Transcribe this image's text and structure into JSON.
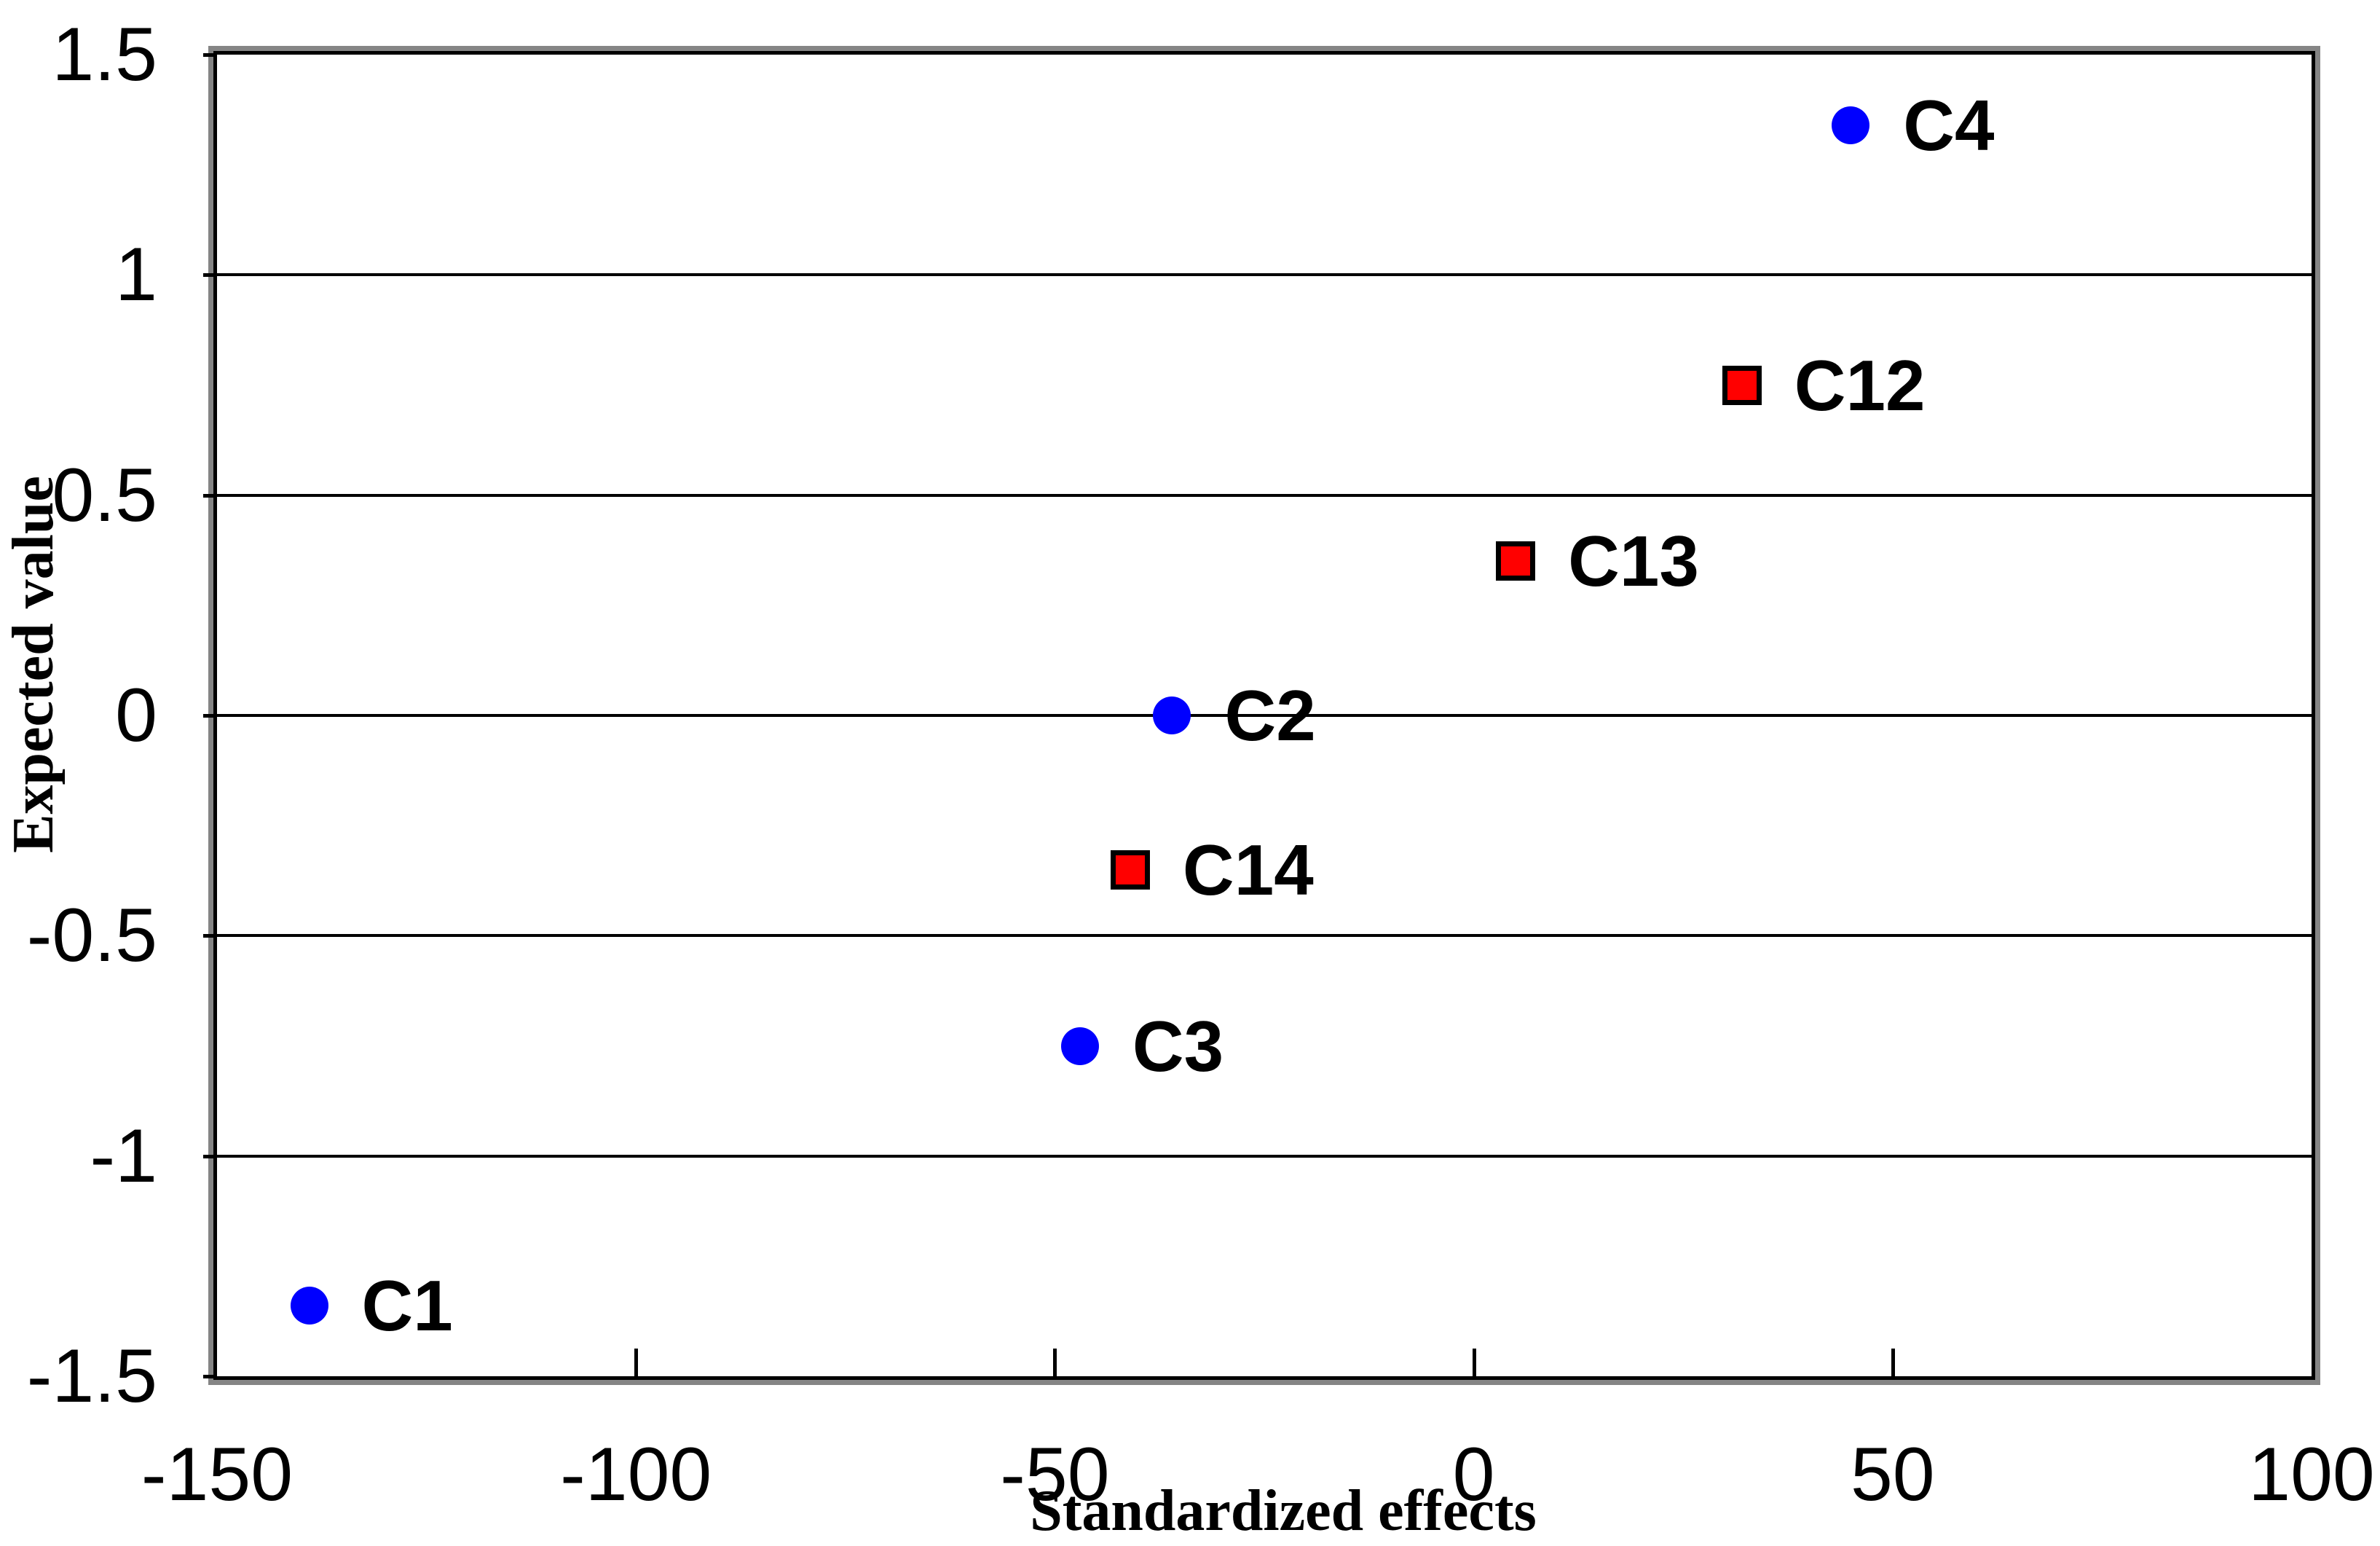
{
  "chart_data": {
    "type": "scatter",
    "title": "",
    "xlabel": "Standardized effects",
    "ylabel": "Expected value",
    "xlim": [
      -150,
      100
    ],
    "ylim": [
      -1.5,
      1.5
    ],
    "x_ticks": [
      -150,
      -100,
      -50,
      0,
      50,
      100
    ],
    "y_ticks": [
      1.5,
      1,
      0.5,
      0,
      -0.5,
      -1,
      -1.5
    ],
    "grid": "horizontal-only",
    "legend": "none",
    "series": [
      {
        "name": "circles",
        "marker": "circle",
        "color": "#0000FF",
        "points": [
          {
            "label": "C1",
            "x": -139,
            "y": -1.34
          },
          {
            "label": "C3",
            "x": -47,
            "y": -0.75
          },
          {
            "label": "C2",
            "x": -36,
            "y": 0
          },
          {
            "label": "C4",
            "x": 45,
            "y": 1.34
          }
        ]
      },
      {
        "name": "squares",
        "marker": "square",
        "color": "#FF0000",
        "points": [
          {
            "label": "C14",
            "x": -41,
            "y": -0.35
          },
          {
            "label": "C13",
            "x": 5,
            "y": 0.35
          },
          {
            "label": "C12",
            "x": 32,
            "y": 0.75
          }
        ]
      }
    ]
  },
  "colors": {
    "marker_blue": "#0000FF",
    "marker_red": "#FF0000",
    "axis_and_grid": "#000000",
    "plot_outline_gray": "#858585",
    "background": "#FFFFFF"
  }
}
